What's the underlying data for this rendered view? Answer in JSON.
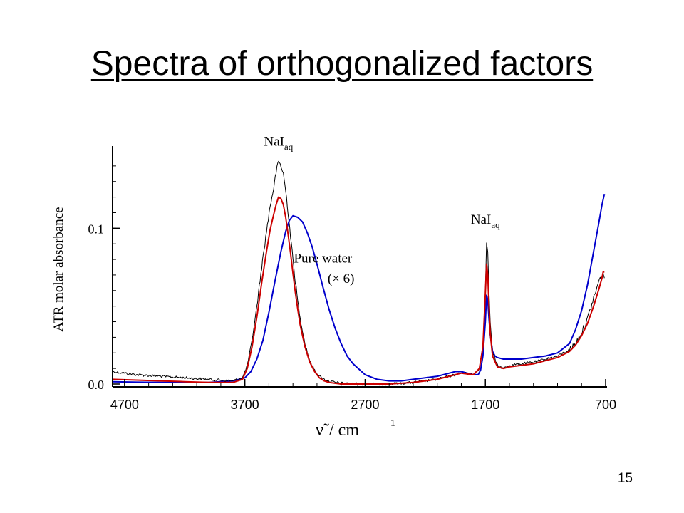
{
  "slide": {
    "title": "Spectra of orthogonalized factors",
    "page_number": "15"
  },
  "chart_data": {
    "type": "line",
    "title": "",
    "xlabel": "ν̃ / cm⁻¹",
    "xlabel_parts": {
      "symbol": "ν̃",
      "unit": "/ cm",
      "exponent": "−1"
    },
    "ylabel": "ATR molar absorbance",
    "xlim": [
      4800,
      700
    ],
    "ylim": [
      0.0,
      0.15
    ],
    "x_reversed": true,
    "x_ticks": [
      4700,
      3700,
      2700,
      1700,
      700
    ],
    "x_tick_labels": [
      "4700",
      "3700",
      "2700",
      "1700",
      "700"
    ],
    "y_ticks": [
      0.0,
      0.1
    ],
    "y_tick_labels": [
      "0.0",
      "0.1"
    ],
    "grid": false,
    "annotations": [
      {
        "text": "NaI",
        "sub": "aq",
        "x": 3420,
        "y": 0.153
      },
      {
        "text": "NaI",
        "sub": "aq",
        "x": 1700,
        "y": 0.103
      },
      {
        "text": "Pure water",
        "x": 3050,
        "y": 0.078
      },
      {
        "text": "(× 6)",
        "x": 2900,
        "y": 0.065
      }
    ],
    "series": [
      {
        "color": "#000000",
        "noisy": true,
        "x": [
          4800,
          4600,
          4400,
          4200,
          4000,
          3800,
          3720,
          3680,
          3640,
          3600,
          3560,
          3520,
          3490,
          3460,
          3440,
          3420,
          3400,
          3380,
          3360,
          3340,
          3320,
          3300,
          3280,
          3260,
          3240,
          3200,
          3160,
          3120,
          3080,
          3040,
          3000,
          2950,
          2900,
          2800,
          2700,
          2500,
          2300,
          2100,
          1900,
          1800,
          1750,
          1720,
          1700,
          1690,
          1680,
          1670,
          1660,
          1640,
          1600,
          1550,
          1500,
          1400,
          1300,
          1200,
          1100,
          1000,
          950,
          900,
          850,
          800,
          760,
          730,
          720,
          710
        ],
        "y": [
          0.008,
          0.006,
          0.005,
          0.004,
          0.003,
          0.002,
          0.004,
          0.012,
          0.028,
          0.05,
          0.075,
          0.098,
          0.114,
          0.126,
          0.136,
          0.143,
          0.14,
          0.135,
          0.124,
          0.11,
          0.095,
          0.08,
          0.066,
          0.053,
          0.042,
          0.026,
          0.015,
          0.009,
          0.005,
          0.003,
          0.002,
          0.001,
          0.0005,
          0.0,
          0.0,
          0.0,
          0.001,
          0.003,
          0.007,
          0.006,
          0.01,
          0.025,
          0.06,
          0.09,
          0.085,
          0.06,
          0.04,
          0.02,
          0.012,
          0.01,
          0.012,
          0.013,
          0.014,
          0.016,
          0.018,
          0.022,
          0.026,
          0.033,
          0.042,
          0.055,
          0.065,
          0.07,
          0.07,
          0.068
        ]
      },
      {
        "color": "#cc0000",
        "x": [
          4800,
          4600,
          4400,
          4200,
          4000,
          3800,
          3720,
          3680,
          3640,
          3600,
          3560,
          3520,
          3490,
          3460,
          3440,
          3420,
          3400,
          3380,
          3360,
          3340,
          3320,
          3300,
          3280,
          3260,
          3240,
          3200,
          3160,
          3120,
          3080,
          3040,
          3000,
          2950,
          2900,
          2800,
          2700,
          2500,
          2300,
          2100,
          1900,
          1800,
          1750,
          1720,
          1700,
          1690,
          1680,
          1670,
          1660,
          1640,
          1600,
          1550,
          1500,
          1400,
          1300,
          1200,
          1100,
          1000,
          950,
          900,
          850,
          800,
          760,
          730,
          720,
          710
        ],
        "y": [
          0.003,
          0.0025,
          0.002,
          0.0015,
          0.001,
          0.001,
          0.003,
          0.01,
          0.024,
          0.043,
          0.065,
          0.085,
          0.099,
          0.109,
          0.115,
          0.12,
          0.119,
          0.115,
          0.107,
          0.096,
          0.084,
          0.071,
          0.059,
          0.048,
          0.038,
          0.024,
          0.014,
          0.008,
          0.004,
          0.002,
          0.001,
          0.0005,
          0.0,
          0.0,
          0.0,
          0.0,
          0.001,
          0.003,
          0.007,
          0.006,
          0.01,
          0.024,
          0.058,
          0.077,
          0.07,
          0.05,
          0.033,
          0.018,
          0.011,
          0.01,
          0.011,
          0.012,
          0.013,
          0.015,
          0.017,
          0.021,
          0.025,
          0.031,
          0.039,
          0.05,
          0.06,
          0.068,
          0.072,
          0.072
        ]
      },
      {
        "color": "#0000cc",
        "x": [
          4800,
          4600,
          4400,
          4200,
          4000,
          3800,
          3700,
          3650,
          3600,
          3550,
          3500,
          3450,
          3400,
          3360,
          3330,
          3300,
          3260,
          3220,
          3180,
          3140,
          3100,
          3050,
          3000,
          2950,
          2900,
          2850,
          2800,
          2700,
          2600,
          2500,
          2400,
          2300,
          2200,
          2100,
          2000,
          1950,
          1900,
          1850,
          1800,
          1760,
          1740,
          1720,
          1700,
          1690,
          1680,
          1670,
          1660,
          1640,
          1620,
          1600,
          1550,
          1500,
          1400,
          1300,
          1200,
          1100,
          1000,
          950,
          900,
          850,
          800,
          760,
          730,
          710
        ],
        "y": [
          0.0015,
          0.0012,
          0.001,
          0.001,
          0.001,
          0.002,
          0.004,
          0.008,
          0.016,
          0.028,
          0.046,
          0.066,
          0.085,
          0.098,
          0.105,
          0.108,
          0.107,
          0.104,
          0.097,
          0.088,
          0.077,
          0.062,
          0.048,
          0.036,
          0.026,
          0.018,
          0.013,
          0.006,
          0.003,
          0.002,
          0.002,
          0.003,
          0.004,
          0.005,
          0.007,
          0.008,
          0.008,
          0.007,
          0.006,
          0.006,
          0.009,
          0.018,
          0.04,
          0.057,
          0.054,
          0.042,
          0.032,
          0.021,
          0.018,
          0.017,
          0.016,
          0.016,
          0.016,
          0.017,
          0.018,
          0.02,
          0.026,
          0.035,
          0.047,
          0.064,
          0.085,
          0.102,
          0.115,
          0.122
        ]
      }
    ]
  }
}
